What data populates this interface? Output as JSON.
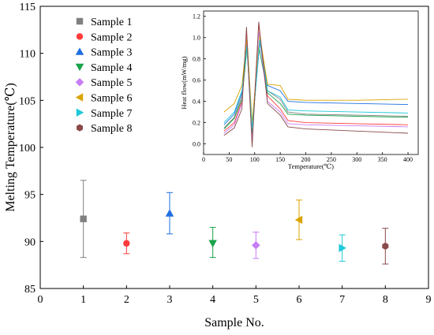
{
  "chart_data": [
    {
      "type": "scatter",
      "xlabel": "Sample No.",
      "ylabel": "Melting Temperature(℃)",
      "xlim": [
        0,
        9
      ],
      "ylim": [
        85,
        115
      ],
      "xticks": [
        0,
        1,
        2,
        3,
        4,
        5,
        6,
        7,
        8,
        9
      ],
      "yticks": [
        85,
        90,
        95,
        100,
        105,
        110,
        115
      ],
      "legend_position": "top-left",
      "series": [
        {
          "name": "Sample 1",
          "x": 1,
          "y": 92.4,
          "err_low": 88.3,
          "err_high": 96.5,
          "marker": "square",
          "color": "#808080"
        },
        {
          "name": "Sample 2",
          "x": 2,
          "y": 89.8,
          "err_low": 88.7,
          "err_high": 90.9,
          "marker": "circle",
          "color": "#ff3b3b"
        },
        {
          "name": "Sample 3",
          "x": 3,
          "y": 93.0,
          "err_low": 90.8,
          "err_high": 95.2,
          "marker": "triangle-up",
          "color": "#1f6fe0"
        },
        {
          "name": "Sample 4",
          "x": 4,
          "y": 89.8,
          "err_low": 88.3,
          "err_high": 91.5,
          "marker": "triangle-down",
          "color": "#1aa34a"
        },
        {
          "name": "Sample 5",
          "x": 5,
          "y": 89.6,
          "err_low": 88.2,
          "err_high": 91.0,
          "marker": "diamond",
          "color": "#c77df5"
        },
        {
          "name": "Sample 6",
          "x": 6,
          "y": 92.3,
          "err_low": 90.2,
          "err_high": 94.4,
          "marker": "triangle-left",
          "color": "#d9a400"
        },
        {
          "name": "Sample 7",
          "x": 7,
          "y": 89.3,
          "err_low": 87.9,
          "err_high": 90.7,
          "marker": "triangle-right",
          "color": "#1fc8d8"
        },
        {
          "name": "Sample 8",
          "x": 8,
          "y": 89.5,
          "err_low": 87.6,
          "err_high": 91.4,
          "marker": "hexagon",
          "color": "#8b4a4a"
        }
      ]
    },
    {
      "type": "line",
      "xlabel": "Temperature(℃)",
      "ylabel": "Heat flow(mW/mg)",
      "xlim": [
        0,
        420
      ],
      "ylim": [
        -0.1,
        1.25
      ],
      "xticks": [
        0,
        50,
        100,
        150,
        200,
        250,
        300,
        350,
        400
      ],
      "yticks": [
        0.0,
        0.2,
        0.4,
        0.6,
        0.8,
        1.0,
        1.2
      ],
      "series": [
        {
          "color": "#808080",
          "values": [
            [
              40,
              0.15
            ],
            [
              60,
              0.25
            ],
            [
              75,
              0.45
            ],
            [
              85,
              0.95
            ],
            [
              95,
              0.12
            ],
            [
              110,
              1.0
            ],
            [
              125,
              0.5
            ],
            [
              150,
              0.42
            ],
            [
              165,
              0.3
            ],
            [
              200,
              0.28
            ],
            [
              300,
              0.27
            ],
            [
              400,
              0.26
            ]
          ]
        },
        {
          "color": "#ff3b3b",
          "values": [
            [
              40,
              0.12
            ],
            [
              60,
              0.2
            ],
            [
              75,
              0.4
            ],
            [
              84,
              1.05
            ],
            [
              95,
              0.05
            ],
            [
              108,
              1.12
            ],
            [
              125,
              0.45
            ],
            [
              150,
              0.33
            ],
            [
              165,
              0.22
            ],
            [
              200,
              0.2
            ],
            [
              300,
              0.19
            ],
            [
              400,
              0.18
            ]
          ]
        },
        {
          "color": "#1f6fe0",
          "values": [
            [
              40,
              0.18
            ],
            [
              60,
              0.28
            ],
            [
              75,
              0.48
            ],
            [
              85,
              0.98
            ],
            [
              95,
              0.15
            ],
            [
              110,
              0.95
            ],
            [
              125,
              0.55
            ],
            [
              150,
              0.5
            ],
            [
              165,
              0.4
            ],
            [
              200,
              0.39
            ],
            [
              300,
              0.38
            ],
            [
              400,
              0.37
            ]
          ]
        },
        {
          "color": "#1aa34a",
          "values": [
            [
              40,
              0.14
            ],
            [
              60,
              0.24
            ],
            [
              75,
              0.42
            ],
            [
              85,
              0.9
            ],
            [
              95,
              0.1
            ],
            [
              108,
              0.92
            ],
            [
              125,
              0.48
            ],
            [
              150,
              0.38
            ],
            [
              165,
              0.28
            ],
            [
              200,
              0.27
            ],
            [
              300,
              0.26
            ],
            [
              400,
              0.25
            ]
          ]
        },
        {
          "color": "#c77df5",
          "values": [
            [
              40,
              0.1
            ],
            [
              60,
              0.18
            ],
            [
              75,
              0.38
            ],
            [
              84,
              1.0
            ],
            [
              95,
              0.02
            ],
            [
              108,
              1.05
            ],
            [
              125,
              0.4
            ],
            [
              150,
              0.3
            ],
            [
              165,
              0.19
            ],
            [
              200,
              0.18
            ],
            [
              300,
              0.17
            ],
            [
              400,
              0.16
            ]
          ]
        },
        {
          "color": "#d9a400",
          "values": [
            [
              40,
              0.3
            ],
            [
              60,
              0.38
            ],
            [
              75,
              0.55
            ],
            [
              85,
              1.0
            ],
            [
              95,
              0.2
            ],
            [
              110,
              1.02
            ],
            [
              125,
              0.56
            ],
            [
              150,
              0.55
            ],
            [
              165,
              0.42
            ],
            [
              200,
              0.41
            ],
            [
              300,
              0.41
            ],
            [
              400,
              0.42
            ]
          ]
        },
        {
          "color": "#1fc8d8",
          "values": [
            [
              40,
              0.2
            ],
            [
              60,
              0.3
            ],
            [
              75,
              0.5
            ],
            [
              85,
              0.92
            ],
            [
              95,
              0.14
            ],
            [
              110,
              0.98
            ],
            [
              125,
              0.5
            ],
            [
              150,
              0.44
            ],
            [
              165,
              0.32
            ],
            [
              200,
              0.31
            ],
            [
              300,
              0.3
            ],
            [
              400,
              0.29
            ]
          ]
        },
        {
          "color": "#8b4a4a",
          "values": [
            [
              40,
              0.08
            ],
            [
              60,
              0.15
            ],
            [
              75,
              0.33
            ],
            [
              84,
              1.1
            ],
            [
              95,
              -0.03
            ],
            [
              108,
              1.15
            ],
            [
              125,
              0.38
            ],
            [
              150,
              0.27
            ],
            [
              165,
              0.16
            ],
            [
              200,
              0.14
            ],
            [
              300,
              0.12
            ],
            [
              400,
              0.1
            ]
          ]
        }
      ]
    }
  ]
}
